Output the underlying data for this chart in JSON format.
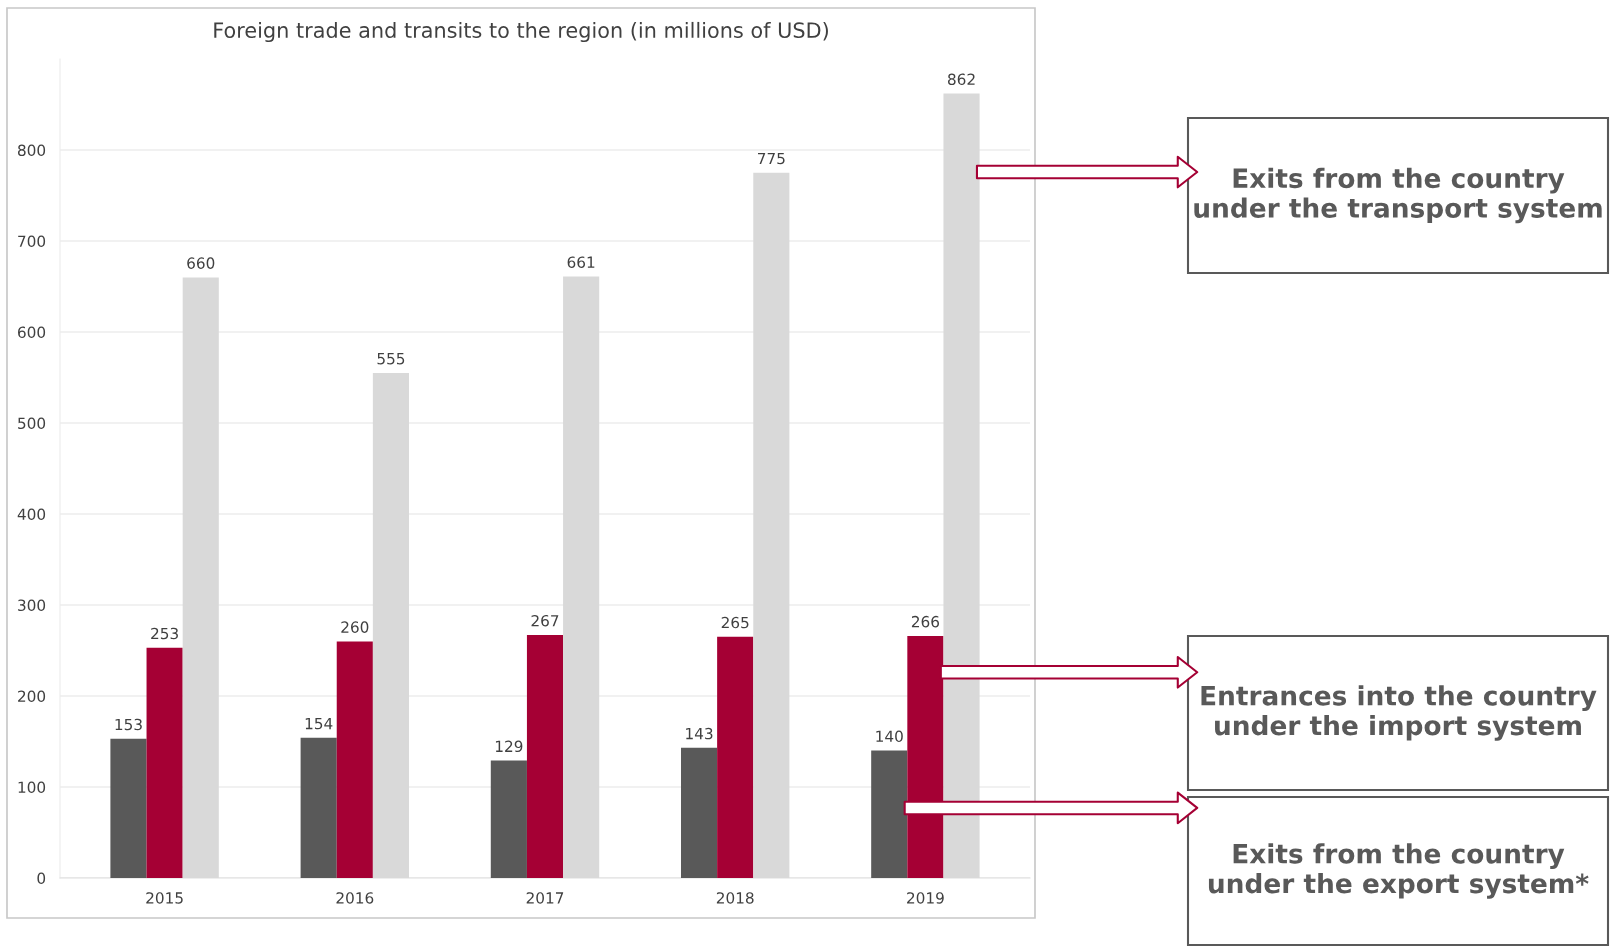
{
  "chart_data": {
    "type": "bar",
    "title": "Foreign trade and transits to the region (in millions of USD)",
    "categories": [
      "2015",
      "2016",
      "2017",
      "2018",
      "2019"
    ],
    "series": [
      {
        "name": "Exits from the country under the export system*",
        "color": "#595959",
        "values": [
          153,
          154,
          129,
          143,
          140
        ]
      },
      {
        "name": "Entrances into the country under the import system",
        "color": "#a50034",
        "values": [
          253,
          260,
          267,
          265,
          266
        ]
      },
      {
        "name": "Exits from the country under the transport system",
        "color": "#d9d9d9",
        "values": [
          660,
          555,
          661,
          775,
          862
        ]
      }
    ],
    "ylim": [
      0,
      900
    ],
    "yticks": [
      0,
      100,
      200,
      300,
      400,
      500,
      600,
      700,
      800
    ],
    "grid": "y",
    "data_labels": true,
    "legend": false
  }
}
